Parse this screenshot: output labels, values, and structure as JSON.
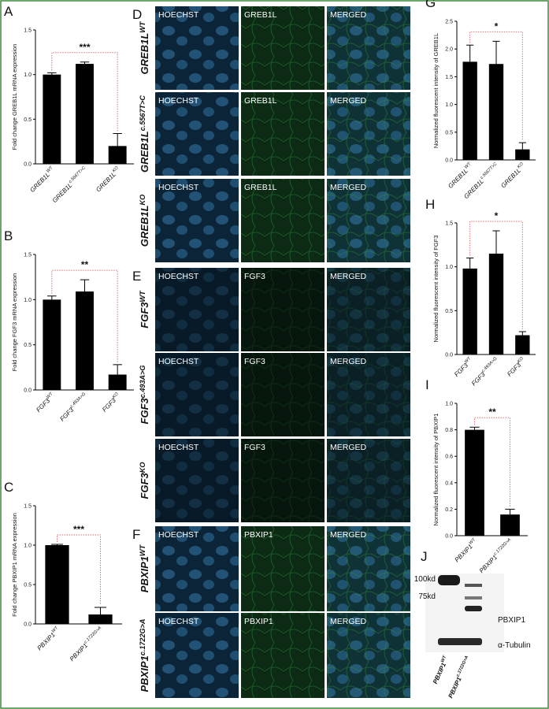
{
  "chart_data": [
    {
      "type": "bar",
      "panel": "A",
      "ylabel": "Fold change GREB1L mRNA expression",
      "categories": [
        "GREB1L",
        "GREB1L",
        "GREB1L"
      ],
      "category_superscripts": [
        "WT",
        "c.5567T>C",
        "KO"
      ],
      "values": [
        1.0,
        1.12,
        0.2
      ],
      "errors": [
        0.02,
        0.02,
        0.14
      ],
      "color": "#000000",
      "ylim": [
        0,
        1.5
      ],
      "yticks": [
        {
          "value": 0,
          "label": "0.0"
        },
        {
          "value": 0.5,
          "label": "0.5"
        },
        {
          "value": 1,
          "label": "1.0"
        },
        {
          "value": 1.5,
          "label": "1.5"
        }
      ],
      "significance": {
        "from": 0,
        "to": 2,
        "label": "***"
      }
    },
    {
      "type": "bar",
      "panel": "B",
      "ylabel": "Fold change FGF3 mRNA expression",
      "categories": [
        "FGF3",
        "FGF3",
        "FGF3"
      ],
      "category_superscripts": [
        "WT",
        "c.493A>G",
        "KO"
      ],
      "values": [
        1.0,
        1.09,
        0.17
      ],
      "errors": [
        0.04,
        0.13,
        0.11
      ],
      "color": "#000000",
      "ylim": [
        0,
        1.5
      ],
      "yticks": [
        {
          "value": 0,
          "label": "0.0"
        },
        {
          "value": 0.5,
          "label": "0.5"
        },
        {
          "value": 1,
          "label": "1.0"
        },
        {
          "value": 1.5,
          "label": "1.5"
        }
      ],
      "significance": {
        "from": 0,
        "to": 2,
        "label": "**"
      }
    },
    {
      "type": "bar",
      "panel": "C",
      "ylabel": "Fold change PBXIP1 mRNA expression",
      "categories": [
        "PBXIP1",
        "PBXIP1"
      ],
      "category_superscripts": [
        "WT",
        "c.1722G>A"
      ],
      "values": [
        1.0,
        0.12
      ],
      "errors": [
        0.01,
        0.09
      ],
      "color": "#000000",
      "ylim": [
        0,
        1.5
      ],
      "yticks": [
        {
          "value": 0,
          "label": "0.0"
        },
        {
          "value": 0.5,
          "label": "0.5"
        },
        {
          "value": 1,
          "label": "1.0"
        },
        {
          "value": 1.5,
          "label": "1.5"
        }
      ],
      "significance": {
        "from": 0,
        "to": 1,
        "label": "***"
      }
    },
    {
      "type": "bar",
      "panel": "G",
      "ylabel": "Normalized fluorescent intensity of GREB1L",
      "categories": [
        "GREB1L",
        "GREB1L",
        "GREB1L"
      ],
      "category_superscripts": [
        "WT",
        "c.5567T>C",
        "KO"
      ],
      "values": [
        1.77,
        1.73,
        0.19
      ],
      "errors": [
        0.3,
        0.41,
        0.12
      ],
      "color": "#000000",
      "ylim": [
        0,
        2.5
      ],
      "yticks": [
        {
          "value": 0,
          "label": "0.0"
        },
        {
          "value": 0.5,
          "label": "0.5"
        },
        {
          "value": 1,
          "label": "1.0"
        },
        {
          "value": 1.5,
          "label": "1.5"
        },
        {
          "value": 2,
          "label": "2.0"
        },
        {
          "value": 2.5,
          "label": "2.5"
        }
      ],
      "significance": {
        "from": 0,
        "to": 2,
        "label": "*"
      }
    },
    {
      "type": "bar",
      "panel": "H",
      "ylabel": "Normalized fluorescent intensity of FGF3",
      "categories": [
        "FGF3",
        "FGF3",
        "FGF3"
      ],
      "category_superscripts": [
        "WT",
        "c.493A>G",
        "KO"
      ],
      "values": [
        0.98,
        1.15,
        0.22
      ],
      "errors": [
        0.12,
        0.26,
        0.04
      ],
      "color": "#000000",
      "ylim": [
        0,
        1.5
      ],
      "yticks": [
        {
          "value": 0,
          "label": "0.0"
        },
        {
          "value": 0.5,
          "label": "0.5"
        },
        {
          "value": 1,
          "label": "1.0"
        },
        {
          "value": 1.5,
          "label": "1.5"
        }
      ],
      "significance": {
        "from": 0,
        "to": 2,
        "label": "*"
      }
    },
    {
      "type": "bar",
      "panel": "I",
      "ylabel": "Normalized fluorescent intensity of PBXIP1",
      "categories": [
        "PBXIP1",
        "PBXIP1"
      ],
      "category_superscripts": [
        "WT",
        "c.1722G>A"
      ],
      "values": [
        0.8,
        0.16
      ],
      "errors": [
        0.02,
        0.04
      ],
      "color": "#000000",
      "ylim": [
        0,
        1.0
      ],
      "yticks": [
        {
          "value": 0,
          "label": "0.0"
        },
        {
          "value": 0.2,
          "label": "0.2"
        },
        {
          "value": 0.4,
          "label": "0.4"
        },
        {
          "value": 0.6,
          "label": "0.6"
        },
        {
          "value": 0.8,
          "label": "0.8"
        },
        {
          "value": 1,
          "label": "1.0"
        }
      ],
      "significance": {
        "from": 0,
        "to": 1,
        "label": "**"
      }
    }
  ],
  "microscopy": [
    {
      "letter": "D",
      "rows": [
        {
          "label": "GREB1L",
          "sup": "WT",
          "columns": [
            "HOECHST",
            "GREB1L",
            "MERGED"
          ]
        },
        {
          "label": "GREB1L",
          "sup": "c.5567T>C",
          "columns": [
            "HOECHST",
            "GREB1L",
            "MERGED"
          ]
        },
        {
          "label": "GREB1L",
          "sup": "KO",
          "columns": [
            "HOECHST",
            "GREB1L",
            "MERGED"
          ]
        }
      ]
    },
    {
      "letter": "E",
      "rows": [
        {
          "label": "FGF3",
          "sup": "WT",
          "columns": [
            "HOECHST",
            "FGF3",
            "MERGED"
          ]
        },
        {
          "label": "FGF3",
          "sup": "c.493A>G",
          "columns": [
            "HOECHST",
            "FGF3",
            "MERGED"
          ]
        },
        {
          "label": "FGF3",
          "sup": "KO",
          "columns": [
            "HOECHST",
            "FGF3",
            "MERGED"
          ]
        }
      ]
    },
    {
      "letter": "F",
      "rows": [
        {
          "label": "PBXIP1",
          "sup": "WT",
          "columns": [
            "HOECHST",
            "PBXIP1",
            "MERGED"
          ]
        },
        {
          "label": "PBXIP1",
          "sup": "c.1722G>A",
          "columns": [
            "HOECHST",
            "PBXIP1",
            "MERGED"
          ]
        }
      ]
    }
  ],
  "western_blot": {
    "letter": "J",
    "markers": [
      "100kd",
      "75kd"
    ],
    "bands": [
      "PBXIP1",
      "α-Tubulin"
    ],
    "lanes": [
      {
        "label": "PBXIP1",
        "sup": "WT"
      },
      {
        "label": "PBXIP1",
        "sup": "c.1722G>A"
      }
    ]
  }
}
